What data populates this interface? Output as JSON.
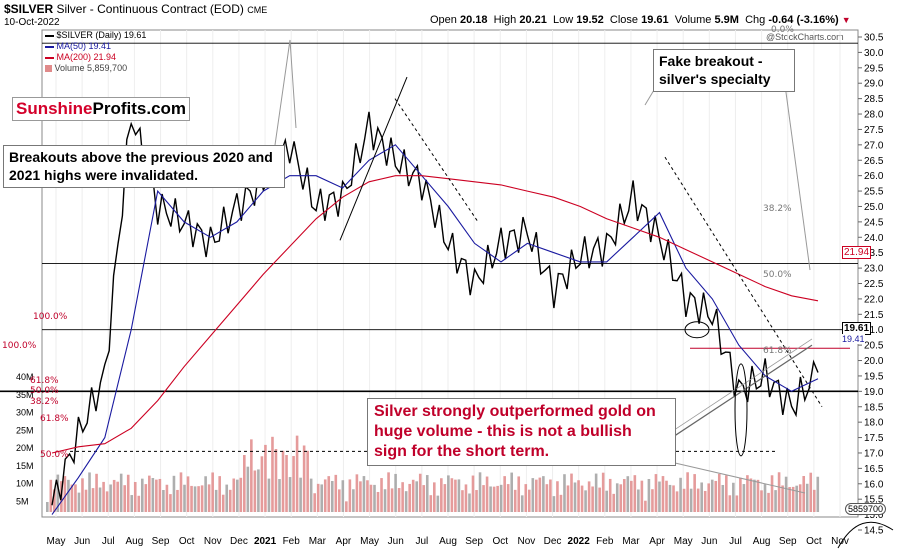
{
  "header": {
    "symbol": "$SILVER",
    "description": "Silver - Continuous Contract (EOD)",
    "exchange": "CME",
    "date": "10-Oct-2022",
    "open_label": "Open",
    "open": "20.18",
    "high_label": "High",
    "high": "20.21",
    "low_label": "Low",
    "low": "19.52",
    "close_label": "Close",
    "close": "19.61",
    "volume_label": "Volume",
    "volume": "5.9M",
    "chg_label": "Chg",
    "chg": "-0.64 (-3.16%)",
    "watermark": "@StockCharts.com"
  },
  "legend": {
    "price": "$SILVER (Daily) 19.61",
    "ma50": "MA(50) 19.41",
    "ma200": "MA(200) 21.94",
    "volume": "Volume 5,859,700"
  },
  "logo": {
    "part1": "Sunshine",
    "part2": "Profits.com"
  },
  "annotations": {
    "breakouts": "Breakouts above the previous 2020 and 2021 highs were invalidated.",
    "fake_breakout": "Fake breakout - silver's specialty",
    "outperformed": "Silver strongly outperformed gold on huge volume - this is not a bullish sign for the short term."
  },
  "colors": {
    "price": "#000000",
    "ma50": "#1a1aa0",
    "ma200": "#cc0022",
    "volume_up": "#a0a0a0",
    "volume_down": "#e08a8a",
    "accent_text": "#c0002a"
  },
  "chart_data": {
    "type": "line",
    "title": "$SILVER Silver - Continuous Contract (EOD)",
    "y_axis": {
      "side": "right",
      "ticks": [
        14.5,
        15.0,
        15.5,
        16.0,
        16.5,
        17.0,
        17.5,
        18.0,
        18.5,
        19.0,
        19.5,
        20.0,
        20.5,
        21.0,
        21.5,
        22.0,
        22.5,
        23.0,
        23.5,
        24.0,
        24.5,
        25.0,
        25.5,
        26.0,
        26.5,
        27.0,
        27.5,
        28.0,
        28.5,
        29.0,
        29.5,
        30.0,
        30.5
      ],
      "range": [
        14.5,
        30.5
      ]
    },
    "x_axis": {
      "ticks": [
        "May",
        "Jun",
        "Jul",
        "Aug",
        "Sep",
        "Oct",
        "Nov",
        "Dec",
        "2021",
        "Feb",
        "Mar",
        "Apr",
        "May",
        "Jun",
        "Jul",
        "Aug",
        "Sep",
        "Oct",
        "Nov",
        "Dec",
        "2022",
        "Feb",
        "Mar",
        "Apr",
        "May",
        "Jun",
        "Jul",
        "Aug",
        "Sep",
        "Oct",
        "Nov"
      ]
    },
    "volume_axis": {
      "ticks": [
        "5M",
        "10M",
        "15M",
        "20M",
        "25M",
        "30M",
        "35M",
        "40M"
      ]
    },
    "last_price_labels": {
      "close": "19.61",
      "ma200": "21.94",
      "ma50": "19.41",
      "volume": "5859700"
    },
    "horizontal_levels": [
      30.3,
      23.15,
      21.0,
      19.0
    ],
    "fib_labels": [
      "0.0%",
      "38.2%",
      "50.0%",
      "61.8%",
      "100.0%"
    ],
    "series": [
      {
        "name": "$SILVER (Daily)",
        "x": [
          "2020-05",
          "2020-06",
          "2020-07",
          "2020-08",
          "2020-09",
          "2020-10",
          "2020-11",
          "2020-12",
          "2021-01",
          "2021-02",
          "2021-03",
          "2021-04",
          "2021-05",
          "2021-06",
          "2021-07",
          "2021-08",
          "2021-09",
          "2021-10",
          "2021-11",
          "2021-12",
          "2022-01",
          "2022-02",
          "2022-03",
          "2022-04",
          "2022-05",
          "2022-06",
          "2022-07",
          "2022-08",
          "2022-09",
          "2022-10"
        ],
        "values": [
          15.3,
          17.6,
          19.5,
          28.0,
          25.0,
          24.5,
          23.8,
          25.0,
          25.8,
          27.0,
          25.0,
          25.3,
          27.6,
          26.5,
          25.8,
          23.8,
          22.5,
          23.8,
          24.2,
          22.3,
          23.4,
          23.7,
          25.3,
          24.0,
          22.0,
          21.5,
          19.0,
          19.5,
          18.5,
          19.61
        ]
      },
      {
        "name": "MA(50)",
        "x": [
          "2020-05",
          "2020-06",
          "2020-07",
          "2020-08",
          "2020-09",
          "2020-10",
          "2020-11",
          "2020-12",
          "2021-01",
          "2021-02",
          "2021-03",
          "2021-04",
          "2021-05",
          "2021-06",
          "2021-07",
          "2021-08",
          "2021-09",
          "2021-10",
          "2021-11",
          "2021-12",
          "2022-01",
          "2022-02",
          "2022-03",
          "2022-04",
          "2022-05",
          "2022-06",
          "2022-07",
          "2022-08",
          "2022-09",
          "2022-10"
        ],
        "values": [
          15.0,
          16.2,
          17.5,
          21.0,
          25.5,
          24.5,
          24.0,
          24.5,
          25.5,
          26.0,
          26.0,
          25.6,
          26.5,
          27.0,
          26.0,
          25.0,
          23.8,
          23.2,
          23.8,
          23.5,
          23.2,
          23.2,
          24.0,
          24.8,
          23.0,
          22.0,
          20.5,
          19.5,
          19.0,
          19.41
        ]
      },
      {
        "name": "MA(200)",
        "x": [
          "2020-05",
          "2020-06",
          "2020-07",
          "2020-08",
          "2020-09",
          "2020-10",
          "2020-11",
          "2020-12",
          "2021-01",
          "2021-02",
          "2021-03",
          "2021-04",
          "2021-05",
          "2021-06",
          "2021-07",
          "2021-08",
          "2021-09",
          "2021-10",
          "2021-11",
          "2021-12",
          "2022-01",
          "2022-02",
          "2022-03",
          "2022-04",
          "2022-05",
          "2022-06",
          "2022-07",
          "2022-08",
          "2022-09",
          "2022-10"
        ],
        "values": [
          17.0,
          17.2,
          17.3,
          17.8,
          18.7,
          19.8,
          20.8,
          21.8,
          22.8,
          23.7,
          24.6,
          25.3,
          25.8,
          26.0,
          26.0,
          25.9,
          25.8,
          25.7,
          25.5,
          25.3,
          25.0,
          24.6,
          24.3,
          24.0,
          23.6,
          23.2,
          22.8,
          22.4,
          22.1,
          21.94
        ]
      }
    ]
  }
}
